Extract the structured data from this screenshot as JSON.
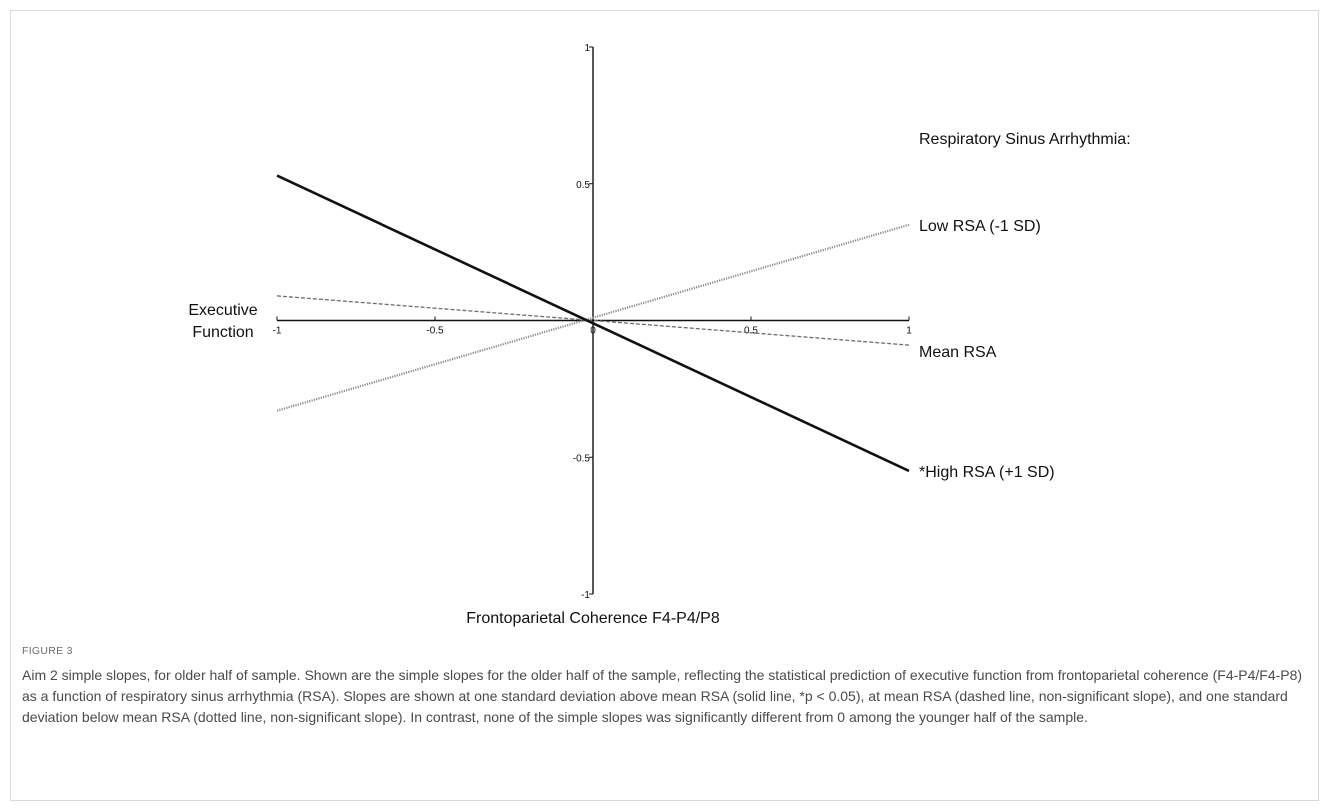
{
  "chart_data": {
    "type": "line",
    "title": "",
    "xlabel": "Frontoparietal Coherence F4-P4/P8",
    "ylabel": "Executive Function",
    "xlim": [
      -1,
      1
    ],
    "ylim": [
      -1,
      1
    ],
    "x_ticks": [
      -1,
      -0.5,
      0,
      0.5,
      1
    ],
    "x_tick_labels": [
      "-1",
      "-0.5",
      "0",
      "0.5",
      "1"
    ],
    "y_ticks": [
      1,
      0.5,
      -0.5,
      -1
    ],
    "y_tick_labels": [
      "1",
      "0.5",
      "-0.5",
      "-1"
    ],
    "grid": false,
    "legend_title": "Respiratory Sinus Arrhythmia:",
    "legend_placement": "right",
    "series": [
      {
        "name": "Low RSA (-1 SD)",
        "style": "dotted",
        "color": "#8a8a8a",
        "x": [
          -1,
          1
        ],
        "y": [
          -0.33,
          0.35
        ]
      },
      {
        "name": "Mean RSA",
        "style": "dashed",
        "color": "#6e6e6e",
        "x": [
          -1,
          1
        ],
        "y": [
          0.09,
          -0.09
        ]
      },
      {
        "name": "*High RSA (+1 SD)",
        "style": "solid",
        "color": "#111111",
        "x": [
          -1,
          1
        ],
        "y": [
          0.53,
          -0.55
        ]
      }
    ]
  },
  "caption": {
    "label": "FIGURE 3",
    "text": "Aim 2 simple slopes, for older half of sample. Shown are the simple slopes for the older half of the sample, reflecting the statistical prediction of executive function from frontoparietal coherence (F4-P4/F4-P8) as a function of respiratory sinus arrhythmia (RSA). Slopes are shown at one standard deviation above mean RSA (solid line, *p < 0.05), at mean RSA (dashed line, non-significant slope), and one standard deviation below mean RSA (dotted line, non-significant slope). In contrast, none of the simple slopes was significantly different from 0 among the younger half of the sample."
  }
}
